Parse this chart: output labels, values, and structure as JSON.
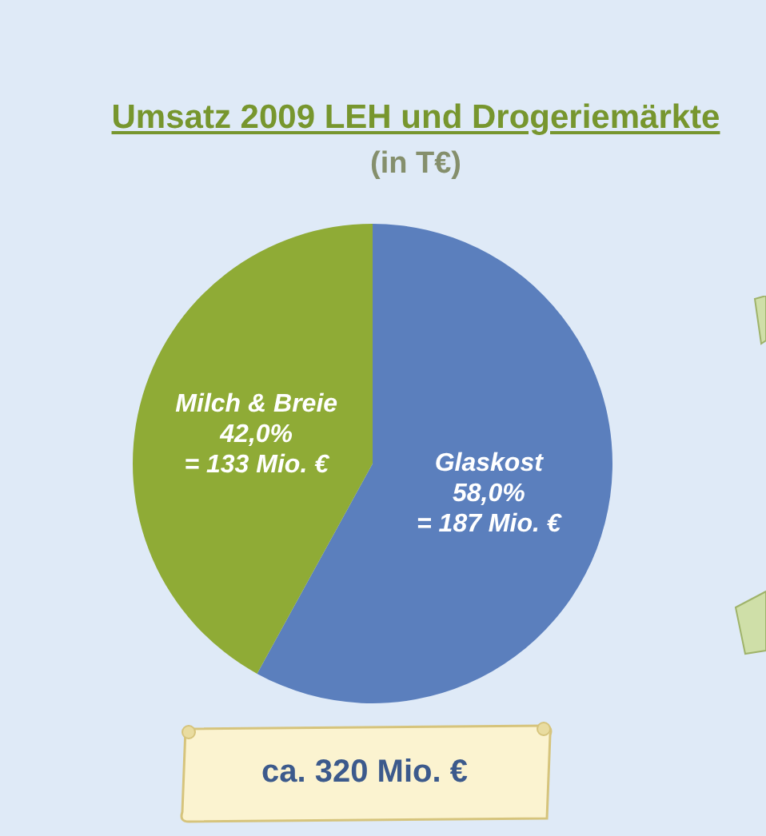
{
  "chart_data": {
    "type": "pie",
    "title": "Umsatz 2009 LEH und Drogeriemärkte",
    "subtitle": "(in T€)",
    "categories": [
      "Glaskost",
      "Milch & Breie"
    ],
    "values": [
      58.0,
      42.0
    ],
    "colors": [
      "#5b7fbd",
      "#8fab36"
    ],
    "value_labels": [
      "58,0%",
      "42,0%"
    ],
    "annotations": [
      {
        "text": "= 187 Mio. €",
        "x": "Glaskost"
      },
      {
        "text": "= 133 Mio. €",
        "x": "Milch & Breie"
      },
      "ca. 320 Mio. €"
    ],
    "legend": false
  }
}
